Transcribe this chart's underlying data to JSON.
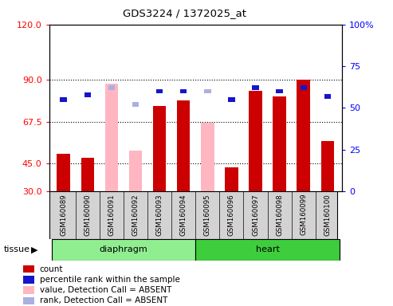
{
  "title": "GDS3224 / 1372025_at",
  "samples": [
    "GSM160089",
    "GSM160090",
    "GSM160091",
    "GSM160092",
    "GSM160093",
    "GSM160094",
    "GSM160095",
    "GSM160096",
    "GSM160097",
    "GSM160098",
    "GSM160099",
    "GSM160100"
  ],
  "red_bars": [
    50,
    48,
    null,
    null,
    76,
    79,
    null,
    43,
    84,
    81,
    90,
    57
  ],
  "pink_bars": [
    null,
    null,
    88,
    52,
    null,
    null,
    67,
    null,
    null,
    null,
    null,
    null
  ],
  "blue_vals": [
    55,
    58,
    62,
    null,
    60,
    60,
    60,
    55,
    62,
    60,
    62,
    57
  ],
  "lavender_vals": [
    null,
    null,
    62,
    52,
    null,
    null,
    60,
    null,
    null,
    null,
    null,
    null
  ],
  "ylim_left": [
    30,
    120
  ],
  "ylim_right": [
    0,
    100
  ],
  "left_ticks": [
    30,
    45,
    67.5,
    90,
    120
  ],
  "right_ticks": [
    0,
    25,
    50,
    75,
    100
  ],
  "red_color": "#cc0000",
  "pink_color": "#ffb6c1",
  "blue_color": "#1515cc",
  "lavender_color": "#aab0e0",
  "diaphragm_color": "#90EE90",
  "heart_color": "#3dcd3d",
  "legend_entries": [
    "count",
    "percentile rank within the sample",
    "value, Detection Call = ABSENT",
    "rank, Detection Call = ABSENT"
  ]
}
